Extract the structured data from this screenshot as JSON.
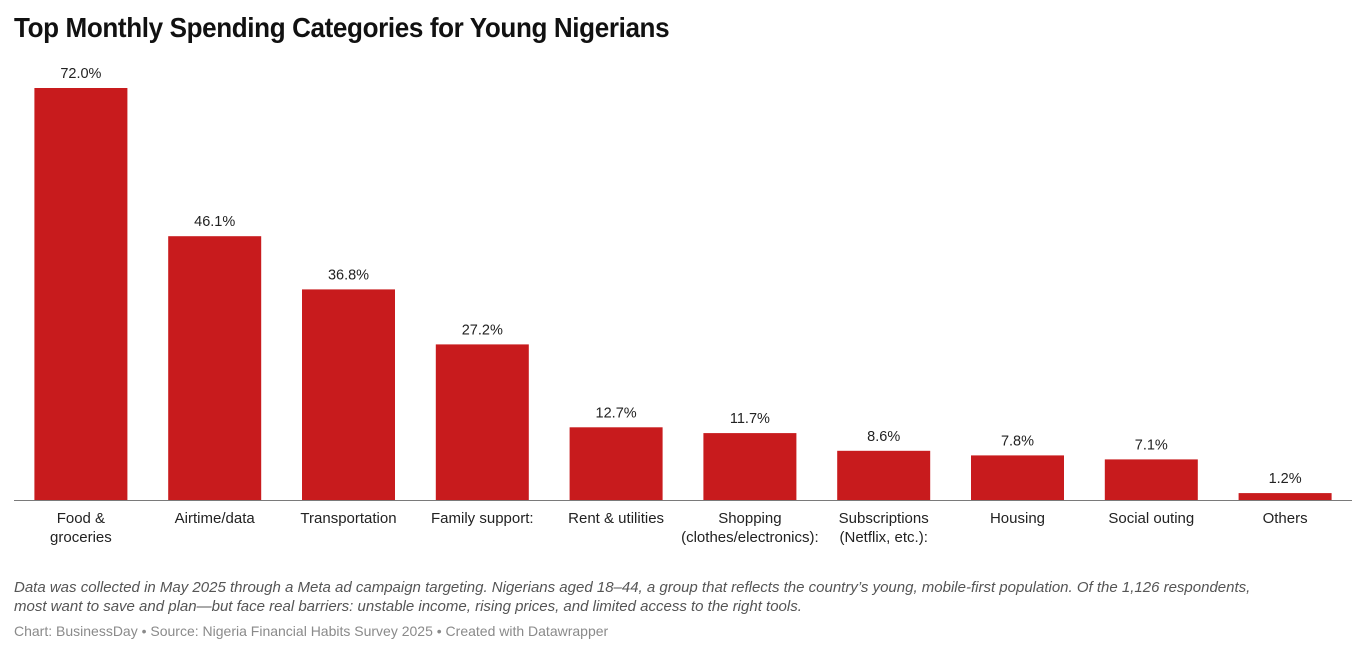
{
  "chart_data": {
    "type": "bar",
    "title": "Top Monthly Spending Categories for Young Nigerians",
    "xlabel": "",
    "ylabel": "",
    "ylim": [
      0,
      72
    ],
    "grid": false,
    "legend": "none",
    "value_suffix": "%",
    "bar_color": "#c81b1d",
    "axis_color": "#7a7a7a",
    "categories": [
      [
        "Food &",
        "groceries"
      ],
      [
        "Airtime/data"
      ],
      [
        "Transportation"
      ],
      [
        "Family support:"
      ],
      [
        "Rent & utilities"
      ],
      [
        "Shopping",
        "(clothes/electronics):"
      ],
      [
        "Subscriptions",
        "(Netflix, etc.):"
      ],
      [
        "Housing"
      ],
      [
        "Social outing"
      ],
      [
        "Others"
      ]
    ],
    "values": [
      72.0,
      46.1,
      36.8,
      27.2,
      12.7,
      11.7,
      8.6,
      7.8,
      7.1,
      1.2
    ],
    "value_labels": [
      "72.0%",
      "46.1%",
      "36.8%",
      "27.2%",
      "12.7%",
      "11.7%",
      "8.6%",
      "7.8%",
      "7.1%",
      "1.2%"
    ]
  },
  "notes": {
    "line1": "Data was collected in May 2025 through a Meta ad campaign targeting. Nigerians aged 18–44, a group that reflects the country’s young, mobile-first population. Of the 1,126 respondents,",
    "line2": "most want to save and plan—but face real barriers: unstable income, rising prices, and limited access to the right tools."
  },
  "credit": "Chart: BusinessDay • Source: Nigeria Financial Habits Survey 2025 • Created with Datawrapper"
}
